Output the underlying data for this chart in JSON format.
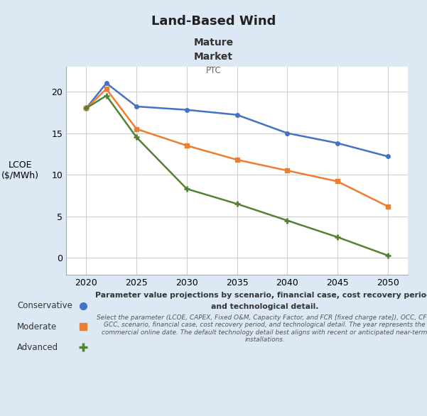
{
  "title": "Land-Based Wind",
  "subtitle1": "Mature",
  "subtitle2": "Market",
  "subtitle3": "PTC",
  "ylabel_line1": "LCOE",
  "ylabel_line2": "($/MWh)",
  "background_color": "#dce9f5",
  "plot_bg_color": "#ffffff",
  "years": [
    2020,
    2022,
    2025,
    2030,
    2035,
    2040,
    2045,
    2050
  ],
  "conservative": [
    18.0,
    21.0,
    18.2,
    17.8,
    17.2,
    15.0,
    13.8,
    12.2
  ],
  "moderate": [
    18.0,
    20.3,
    15.5,
    13.5,
    11.8,
    10.5,
    9.2,
    6.2
  ],
  "advanced": [
    18.0,
    19.5,
    14.5,
    8.3,
    6.5,
    4.5,
    2.5,
    0.3
  ],
  "conservative_color": "#4472c4",
  "moderate_color": "#ed7d31",
  "advanced_color": "#548235",
  "annotation_bold_line1": "Parameter value projections by scenario, financial case, cost recovery period,",
  "annotation_bold_line2": "and technological detail.",
  "annotation_italic": "Select the parameter (LCOE, CAPEX, Fixed O&M, Capacity Factor, and FCR [fixed charge rate]), OCC, CFC,\nGCC, scenario, financial case, cost recovery period, and technological detail. The year represents the\ncommercial online date. The default technology detail best aligns with recent or anticipated near-term\ninstallations.",
  "xlim": [
    2018,
    2052
  ],
  "ylim": [
    -2,
    23
  ],
  "xticks": [
    2020,
    2025,
    2030,
    2035,
    2040,
    2045,
    2050
  ],
  "yticks": [
    0,
    5,
    10,
    15,
    20
  ]
}
